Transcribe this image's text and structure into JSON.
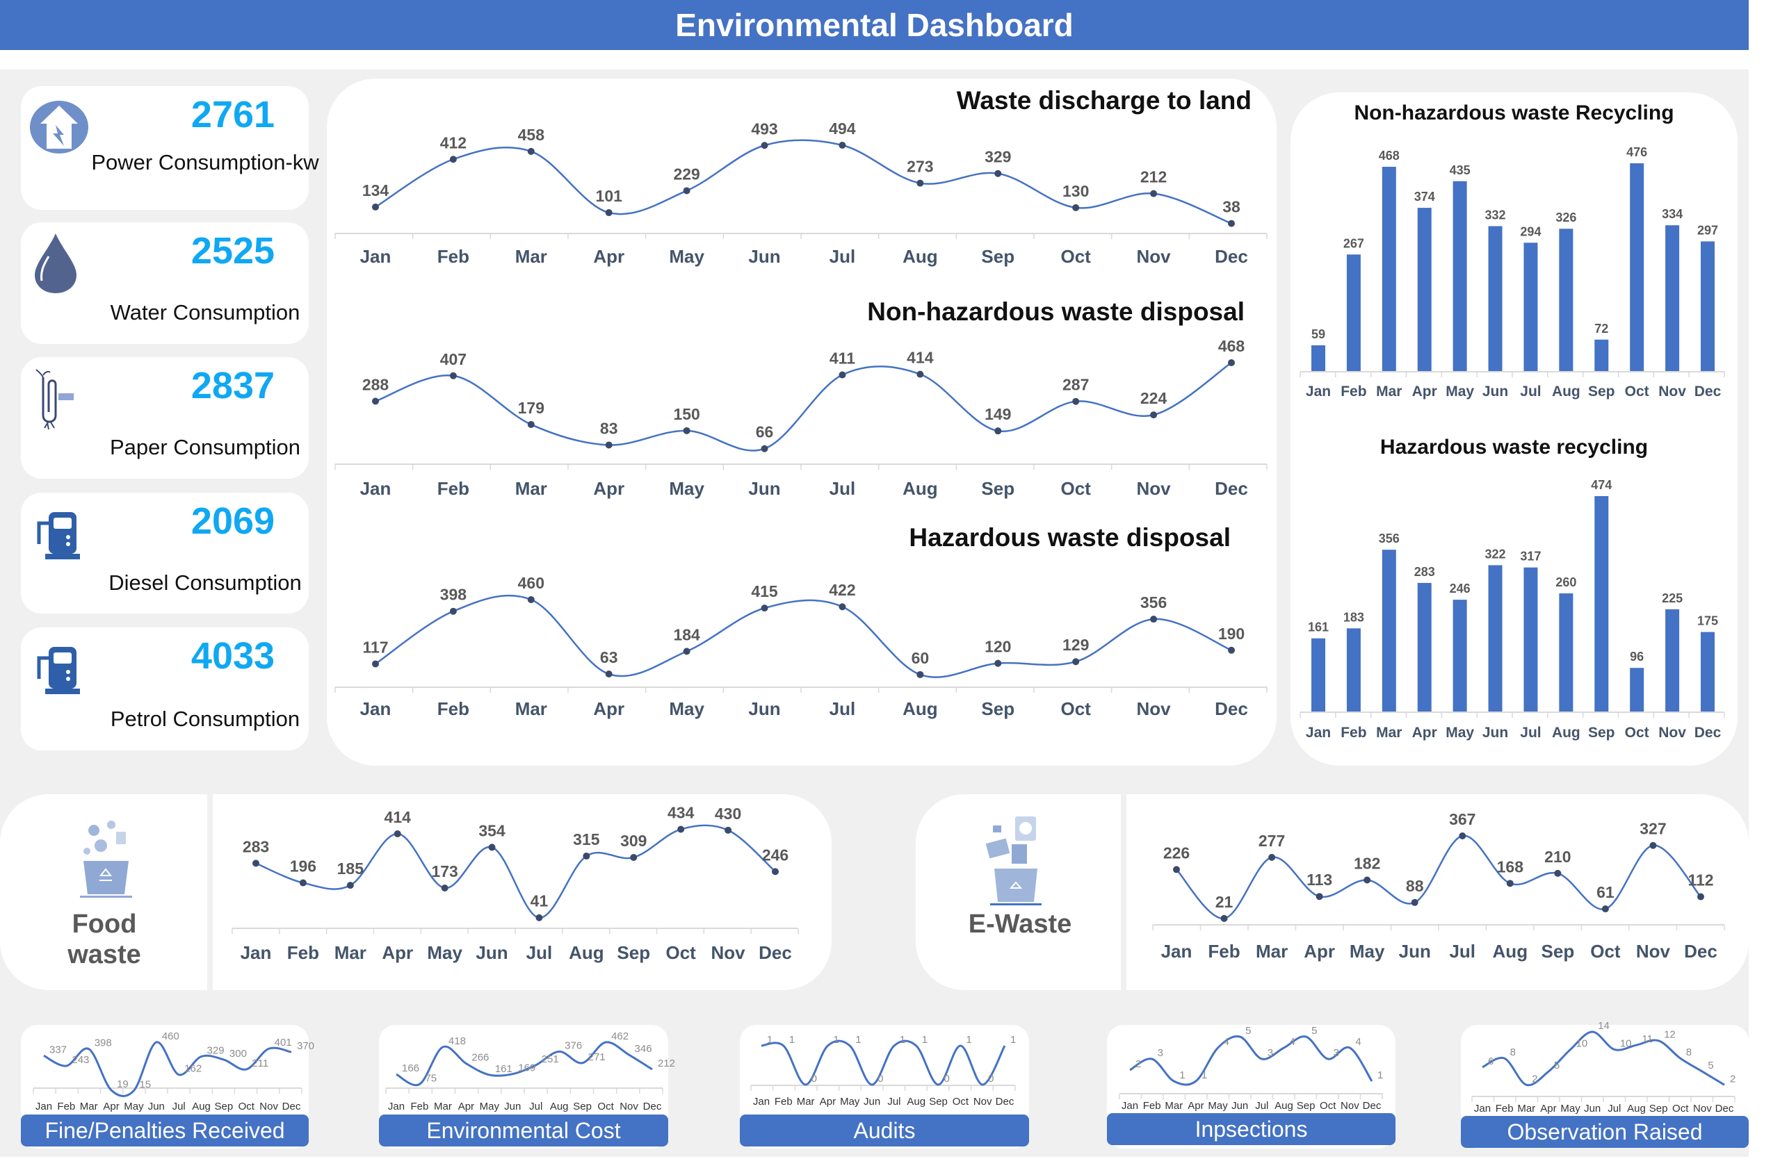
{
  "header": {
    "title": "Environmental Dashboard"
  },
  "colors": {
    "header": "#4472C4",
    "kpi_value": "#0FA8F2",
    "series": "#4472C4",
    "bars": "#4472C4",
    "data_label": "#595959"
  },
  "kpis": [
    {
      "value": "2761",
      "label": "Power Consumption-kw",
      "icon": "house-lightning-icon"
    },
    {
      "value": "2525",
      "label": "Water Consumption",
      "icon": "water-drop-icon"
    },
    {
      "value": "2837",
      "label": "Paper Consumption",
      "icon": "paperclip-green-office-icon"
    },
    {
      "value": "2069",
      "label": "Diesel Consumption",
      "icon": "fuel-pump-icon"
    },
    {
      "value": "4033",
      "label": "Petrol Consumption",
      "icon": "fuel-pump-icon"
    }
  ],
  "chart_data": [
    {
      "type": "line",
      "title": "Waste discharge to land",
      "categories": [
        "Jan",
        "Feb",
        "Mar",
        "Apr",
        "May",
        "Jun",
        "Jul",
        "Aug",
        "Sep",
        "Oct",
        "Nov",
        "Dec"
      ],
      "values": [
        134,
        412,
        458,
        101,
        229,
        493,
        494,
        273,
        329,
        130,
        212,
        38
      ]
    },
    {
      "type": "line",
      "title": "Non-hazardous waste disposal",
      "categories": [
        "Jan",
        "Feb",
        "Mar",
        "Apr",
        "May",
        "Jun",
        "Jul",
        "Aug",
        "Sep",
        "Oct",
        "Nov",
        "Dec"
      ],
      "values": [
        288,
        407,
        179,
        83,
        150,
        66,
        411,
        414,
        149,
        287,
        224,
        468
      ]
    },
    {
      "type": "line",
      "title": "Hazardous waste disposal",
      "categories": [
        "Jan",
        "Feb",
        "Mar",
        "Apr",
        "May",
        "Jun",
        "Jul",
        "Aug",
        "Sep",
        "Oct",
        "Nov",
        "Dec"
      ],
      "values": [
        117,
        398,
        460,
        63,
        184,
        415,
        422,
        60,
        120,
        129,
        356,
        190
      ]
    },
    {
      "type": "bar",
      "title": "Non-hazardous waste Recycling",
      "categories": [
        "Jan",
        "Feb",
        "Mar",
        "Apr",
        "May",
        "Jun",
        "Jul",
        "Aug",
        "Sep",
        "Oct",
        "Nov",
        "Dec"
      ],
      "values": [
        59,
        267,
        468,
        374,
        435,
        332,
        294,
        326,
        72,
        476,
        334,
        297
      ]
    },
    {
      "type": "bar",
      "title": "Hazardous waste recycling",
      "categories": [
        "Jan",
        "Feb",
        "Mar",
        "Apr",
        "May",
        "Jun",
        "Jul",
        "Aug",
        "Sep",
        "Oct",
        "Nov",
        "Dec"
      ],
      "values": [
        161,
        183,
        356,
        283,
        246,
        322,
        317,
        260,
        474,
        96,
        225,
        175
      ]
    },
    {
      "type": "line",
      "title": "Food waste",
      "icon": "food-waste-bin-icon",
      "categories": [
        "Jan",
        "Feb",
        "Mar",
        "Apr",
        "May",
        "Jun",
        "Jul",
        "Aug",
        "Sep",
        "Oct",
        "Nov",
        "Dec"
      ],
      "values": [
        283,
        196,
        185,
        414,
        173,
        354,
        41,
        315,
        309,
        434,
        430,
        246
      ]
    },
    {
      "type": "line",
      "title": "E-Waste",
      "icon": "e-waste-bin-icon",
      "categories": [
        "Jan",
        "Feb",
        "Mar",
        "Apr",
        "May",
        "Jun",
        "Jul",
        "Aug",
        "Sep",
        "Oct",
        "Nov",
        "Dec"
      ],
      "values": [
        226,
        21,
        277,
        113,
        182,
        88,
        367,
        168,
        210,
        61,
        327,
        112
      ]
    },
    {
      "type": "line",
      "title": "Fine/Penalties Received",
      "categories": [
        "Jan",
        "Feb",
        "Mar",
        "Apr",
        "May",
        "Jun",
        "Jul",
        "Aug",
        "Sep",
        "Oct",
        "Nov",
        "Dec"
      ],
      "values": [
        337,
        243,
        398,
        19,
        15,
        460,
        162,
        329,
        300,
        211,
        401,
        370
      ]
    },
    {
      "type": "line",
      "title": "Environmental Cost",
      "categories": [
        "Jan",
        "Feb",
        "Mar",
        "Apr",
        "May",
        "Jun",
        "Jul",
        "Aug",
        "Sep",
        "Oct",
        "Nov",
        "Dec"
      ],
      "values": [
        166,
        75,
        418,
        266,
        161,
        169,
        251,
        376,
        271,
        462,
        346,
        212
      ]
    },
    {
      "type": "line",
      "title": "Audits",
      "categories": [
        "Jan",
        "Feb",
        "Mar",
        "Apr",
        "May",
        "Jun",
        "Jul",
        "Aug",
        "Sep",
        "Oct",
        "Nov",
        "Dec"
      ],
      "values": [
        1,
        1,
        0,
        1,
        1,
        0,
        1,
        1,
        0,
        1,
        0,
        1
      ]
    },
    {
      "type": "line",
      "title": "Inpsections",
      "categories": [
        "Jan",
        "Feb",
        "Mar",
        "Apr",
        "May",
        "Jun",
        "Jul",
        "Aug",
        "Sep",
        "Oct",
        "Nov",
        "Dec"
      ],
      "values": [
        2,
        3,
        1,
        1,
        4,
        5,
        3,
        4,
        5,
        3,
        4,
        1
      ]
    },
    {
      "type": "line",
      "title": "Observation Raised",
      "categories": [
        "Jan",
        "Feb",
        "Mar",
        "Apr",
        "May",
        "Jun",
        "Jul",
        "Aug",
        "Sep",
        "Oct",
        "Nov",
        "Dec"
      ],
      "values": [
        6,
        8,
        2,
        5,
        10,
        14,
        10,
        11,
        12,
        8,
        5,
        2
      ]
    }
  ]
}
